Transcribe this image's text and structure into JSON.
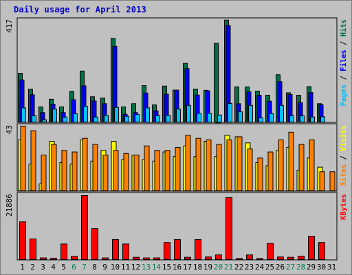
{
  "title": "Daily usage for April 2013",
  "colors": {
    "hits": "#006f46",
    "files": "#0000ff",
    "pages": "#00c0ff",
    "visits": "#ffff00",
    "sites": "#ff8000",
    "kbytes": "#ff0000",
    "weekend_label": "#00804c",
    "weekday_label": "#000000"
  },
  "chart_data": [
    {
      "type": "bar",
      "panel": "hits-files-pages",
      "max_label": "417",
      "ylim": [
        0,
        417
      ],
      "right_labels": [
        {
          "text": "Pages",
          "color": "#00c0ff"
        },
        {
          "text": " / ",
          "color": "#000000"
        },
        {
          "text": "Files",
          "color": "#0000ff"
        },
        {
          "text": " / ",
          "color": "#000000"
        },
        {
          "text": "Hits",
          "color": "#006f46"
        }
      ],
      "categories": [
        "1",
        "2",
        "3",
        "4",
        "5",
        "6",
        "7",
        "8",
        "9",
        "10",
        "11",
        "12",
        "13",
        "14",
        "15",
        "16",
        "17",
        "18",
        "19",
        "20",
        "21",
        "22",
        "23",
        "24",
        "25",
        "26",
        "27",
        "28",
        "29",
        "30",
        "31"
      ],
      "series": [
        {
          "name": "Hits",
          "values": [
            200,
            136,
            64,
            95,
            64,
            127,
            209,
            105,
            100,
            341,
            64,
            77,
            150,
            72,
            148,
            132,
            240,
            136,
            131,
            321,
            415,
            145,
            145,
            128,
            111,
            194,
            121,
            111,
            146,
            77,
            0
          ]
        },
        {
          "name": "Files",
          "values": [
            173,
            113,
            41,
            75,
            41,
            93,
            149,
            88,
            77,
            309,
            34,
            41,
            120,
            48,
            115,
            132,
            219,
            112,
            129,
            1,
            393,
            77,
            125,
            111,
            87,
            166,
            114,
            81,
            122,
            73,
            0
          ]
        },
        {
          "name": "Pages",
          "values": [
            60,
            28,
            12,
            55,
            23,
            36,
            66,
            23,
            30,
            62,
            26,
            33,
            60,
            28,
            30,
            55,
            70,
            38,
            38,
            31,
            78,
            44,
            70,
            20,
            37,
            70,
            28,
            28,
            23,
            24,
            0
          ]
        }
      ]
    },
    {
      "type": "bar",
      "panel": "visits-sites",
      "max_label": "43",
      "ylim": [
        0,
        43
      ],
      "right_labels": [
        {
          "text": "Sites",
          "color": "#ff8000"
        },
        {
          "text": " / ",
          "color": "#000000"
        },
        {
          "text": "Visits",
          "color": "#ffff00"
        }
      ],
      "categories": [
        "1",
        "2",
        "3",
        "4",
        "5",
        "6",
        "7",
        "8",
        "9",
        "10",
        "11",
        "12",
        "13",
        "14",
        "15",
        "16",
        "17",
        "18",
        "19",
        "20",
        "21",
        "22",
        "23",
        "24",
        "25",
        "26",
        "27",
        "28",
        "29",
        "30",
        "31"
      ],
      "series": [
        {
          "name": "Visits",
          "values": [
            34,
            18,
            5,
            33,
            19,
            18,
            34,
            20,
            27,
            33,
            21,
            24,
            21,
            20,
            26,
            23,
            30,
            23,
            33,
            23,
            37,
            36,
            32,
            19,
            17,
            27,
            29,
            14,
            22,
            16,
            0
          ]
        },
        {
          "name": "Sites",
          "values": [
            43,
            40,
            24,
            31,
            27,
            26,
            35,
            31,
            24,
            27,
            25,
            24,
            30,
            27,
            27,
            29,
            37,
            35,
            34,
            31,
            34,
            36,
            28,
            22,
            26,
            34,
            39,
            31,
            34,
            13,
            13
          ]
        }
      ]
    },
    {
      "type": "bar",
      "panel": "kbytes",
      "max_label": "21886",
      "ylim": [
        0,
        21886
      ],
      "right_labels": [
        {
          "text": "KBytes",
          "color": "#ff0000"
        }
      ],
      "categories": [
        "1",
        "2",
        "3",
        "4",
        "5",
        "6",
        "7",
        "8",
        "9",
        "10",
        "11",
        "12",
        "13",
        "14",
        "15",
        "16",
        "17",
        "18",
        "19",
        "20",
        "21",
        "22",
        "23",
        "24",
        "25",
        "26",
        "27",
        "28",
        "29",
        "30",
        "31"
      ],
      "series": [
        {
          "name": "KBytes",
          "values": [
            13000,
            7200,
            800,
            700,
            5500,
            1300,
            21886,
            10700,
            800,
            7000,
            5500,
            1000,
            800,
            800,
            6000,
            7000,
            1000,
            7000,
            1100,
            1800,
            21200,
            600,
            1800,
            600,
            5700,
            1100,
            1000,
            1400,
            8100,
            6000,
            0
          ]
        }
      ]
    }
  ],
  "x_labels": [
    {
      "text": "1",
      "weekend": false
    },
    {
      "text": "2",
      "weekend": false
    },
    {
      "text": "3",
      "weekend": false
    },
    {
      "text": "4",
      "weekend": false
    },
    {
      "text": "5",
      "weekend": false
    },
    {
      "text": "6",
      "weekend": true
    },
    {
      "text": "7",
      "weekend": true
    },
    {
      "text": "8",
      "weekend": false
    },
    {
      "text": "9",
      "weekend": false
    },
    {
      "text": "10",
      "weekend": false
    },
    {
      "text": "11",
      "weekend": false
    },
    {
      "text": "12",
      "weekend": false
    },
    {
      "text": "13",
      "weekend": true
    },
    {
      "text": "14",
      "weekend": true
    },
    {
      "text": "15",
      "weekend": false
    },
    {
      "text": "16",
      "weekend": false
    },
    {
      "text": "17",
      "weekend": false
    },
    {
      "text": "18",
      "weekend": false
    },
    {
      "text": "19",
      "weekend": false
    },
    {
      "text": "20",
      "weekend": true
    },
    {
      "text": "21",
      "weekend": true
    },
    {
      "text": "22",
      "weekend": false
    },
    {
      "text": "23",
      "weekend": false
    },
    {
      "text": "24",
      "weekend": false
    },
    {
      "text": "25",
      "weekend": false
    },
    {
      "text": "26",
      "weekend": false
    },
    {
      "text": "27",
      "weekend": true
    },
    {
      "text": "28",
      "weekend": true
    },
    {
      "text": "29",
      "weekend": false
    },
    {
      "text": "30",
      "weekend": false
    },
    {
      "text": "31",
      "weekend": false
    }
  ]
}
